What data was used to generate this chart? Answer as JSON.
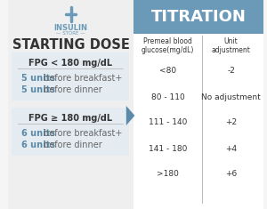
{
  "bg_color": "#f5f5f5",
  "left_bg": "#efefef",
  "right_bg": "#ffffff",
  "header_blue": "#6b9ab8",
  "header_text": "#ffffff",
  "box_bg": "#e4ecf2",
  "title_left": "STARTING DOSE",
  "title_right": "TITRATION",
  "logo_color": "#6b9ab8",
  "logo_text": "INSULIN",
  "logo_sub": "— STORE —",
  "fpg_less_label": "FPG < 180 mg/dL",
  "fpg_greater_label": "FPG ≥ 180 mg/dL",
  "fpg_less_lines": [
    "5 units",
    "before breakfast+",
    "5 units",
    "before dinner"
  ],
  "fpg_greater_lines": [
    "6 units",
    "before breakfast+",
    "6 units",
    "before dinner"
  ],
  "col1_header": "Premeal blood\nglucose(mg/dL)",
  "col2_header": "Unit\nadjustment",
  "table_rows": [
    [
      "<80",
      "-2"
    ],
    [
      "80 - 110",
      "No adjustment"
    ],
    [
      "111 - 140",
      "+2"
    ],
    [
      "141 - 180",
      "+4"
    ],
    [
      ">180",
      "+6"
    ]
  ],
  "arrow_color": "#5a8aa8",
  "unit_bold_color": "#5a8aa8",
  "divider_color": "#bbbbbb",
  "text_dark": "#333333",
  "text_medium": "#666666"
}
